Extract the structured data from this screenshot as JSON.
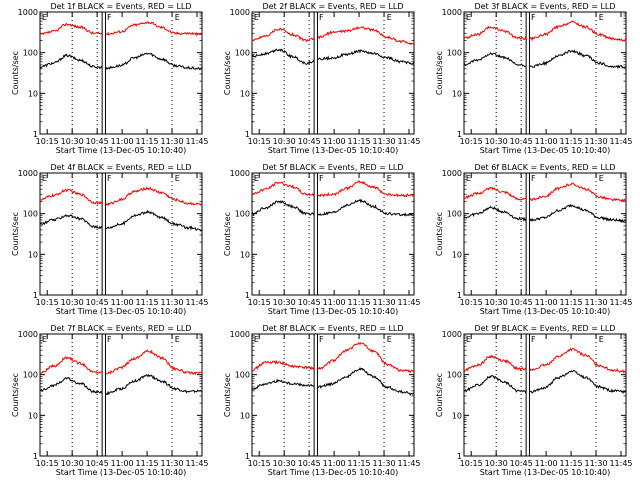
{
  "chart_data": {
    "type": "line",
    "panels": [
      {
        "title": "Det 1f BLACK = Events, RED = LLD",
        "lld": [
          280,
          330,
          500,
          420,
          300,
          290,
          330,
          480,
          560,
          420,
          300,
          300,
          280
        ],
        "events": [
          45,
          55,
          85,
          65,
          45,
          42,
          48,
          75,
          95,
          70,
          48,
          42,
          40
        ]
      },
      {
        "title": "Det 2f BLACK = Events, RED = LLD",
        "lld": [
          200,
          260,
          380,
          280,
          200,
          240,
          320,
          340,
          420,
          360,
          240,
          190,
          170
        ],
        "events": [
          80,
          95,
          120,
          80,
          55,
          70,
          75,
          90,
          110,
          95,
          75,
          60,
          55
        ]
      },
      {
        "title": "Det 3f BLACK = Events, RED = LLD",
        "lld": [
          230,
          280,
          420,
          340,
          230,
          220,
          280,
          430,
          560,
          430,
          280,
          220,
          200
        ],
        "events": [
          50,
          65,
          95,
          75,
          50,
          45,
          55,
          85,
          110,
          85,
          55,
          45,
          45
        ]
      },
      {
        "title": "Det 4f BLACK = Events, RED = LLD",
        "lld": [
          220,
          280,
          380,
          300,
          190,
          170,
          220,
          350,
          420,
          330,
          220,
          180,
          170
        ],
        "events": [
          55,
          70,
          90,
          75,
          48,
          45,
          55,
          90,
          110,
          80,
          55,
          45,
          40
        ]
      },
      {
        "title": "Det 5f BLACK = Events, RED = LLD",
        "lld": [
          300,
          400,
          580,
          460,
          300,
          280,
          300,
          420,
          600,
          450,
          300,
          280,
          290
        ],
        "events": [
          100,
          140,
          200,
          150,
          100,
          95,
          105,
          160,
          210,
          150,
          100,
          95,
          95
        ]
      },
      {
        "title": "Det 6f BLACK = Events, RED = LLD",
        "lld": [
          250,
          310,
          420,
          340,
          230,
          220,
          270,
          420,
          540,
          400,
          260,
          220,
          210
        ],
        "events": [
          80,
          100,
          140,
          110,
          75,
          70,
          80,
          120,
          160,
          120,
          80,
          70,
          65
        ]
      },
      {
        "title": "Det 7f BLACK = Events, RED = LLD",
        "lld": [
          110,
          160,
          260,
          190,
          115,
          110,
          150,
          250,
          380,
          260,
          140,
          110,
          110
        ],
        "events": [
          40,
          55,
          80,
          60,
          38,
          35,
          45,
          70,
          95,
          70,
          45,
          38,
          40
        ]
      },
      {
        "title": "Det 8f BLACK = Events, RED = LLD",
        "lld": [
          130,
          200,
          200,
          160,
          150,
          140,
          220,
          400,
          600,
          380,
          180,
          130,
          120
        ],
        "events": [
          45,
          60,
          70,
          60,
          55,
          50,
          60,
          90,
          140,
          90,
          50,
          38,
          33
        ]
      },
      {
        "title": "Det 9f BLACK = Events, RED = LLD",
        "lld": [
          130,
          170,
          280,
          220,
          140,
          130,
          170,
          280,
          420,
          300,
          170,
          130,
          120
        ],
        "events": [
          40,
          55,
          90,
          65,
          40,
          38,
          48,
          85,
          120,
          85,
          50,
          40,
          38
        ]
      }
    ],
    "xlabel": "Start Time (13-Dec-05 10:10:40)",
    "ylabel": "Counts/sec",
    "xticks": [
      "10:15",
      "10:30",
      "10:45",
      "11:00",
      "11:15",
      "11:30",
      "11:45"
    ],
    "yticks": [
      "1",
      "10",
      "100",
      "1000"
    ],
    "ylim": [
      1,
      1000
    ],
    "yscale": "log",
    "markers": [
      "E",
      "F",
      "E"
    ],
    "series": [
      {
        "color": "#ff0000"
      },
      {
        "color": "#000000"
      }
    ]
  }
}
